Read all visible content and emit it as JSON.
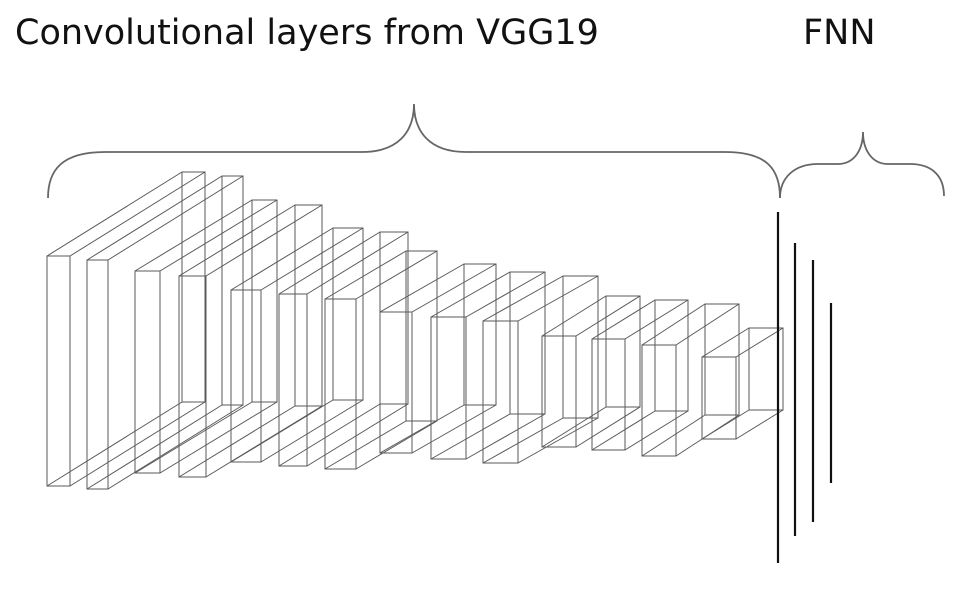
{
  "labels": {
    "conv": "Convolutional layers from VGG19",
    "fnn": "FNN"
  },
  "colors": {
    "stroke": "#5a5a5a",
    "brace": "#666666",
    "fnn_line": "#111111",
    "text": "#111111"
  },
  "conv_layer_count": 14,
  "fnn_layer_count": 4
}
